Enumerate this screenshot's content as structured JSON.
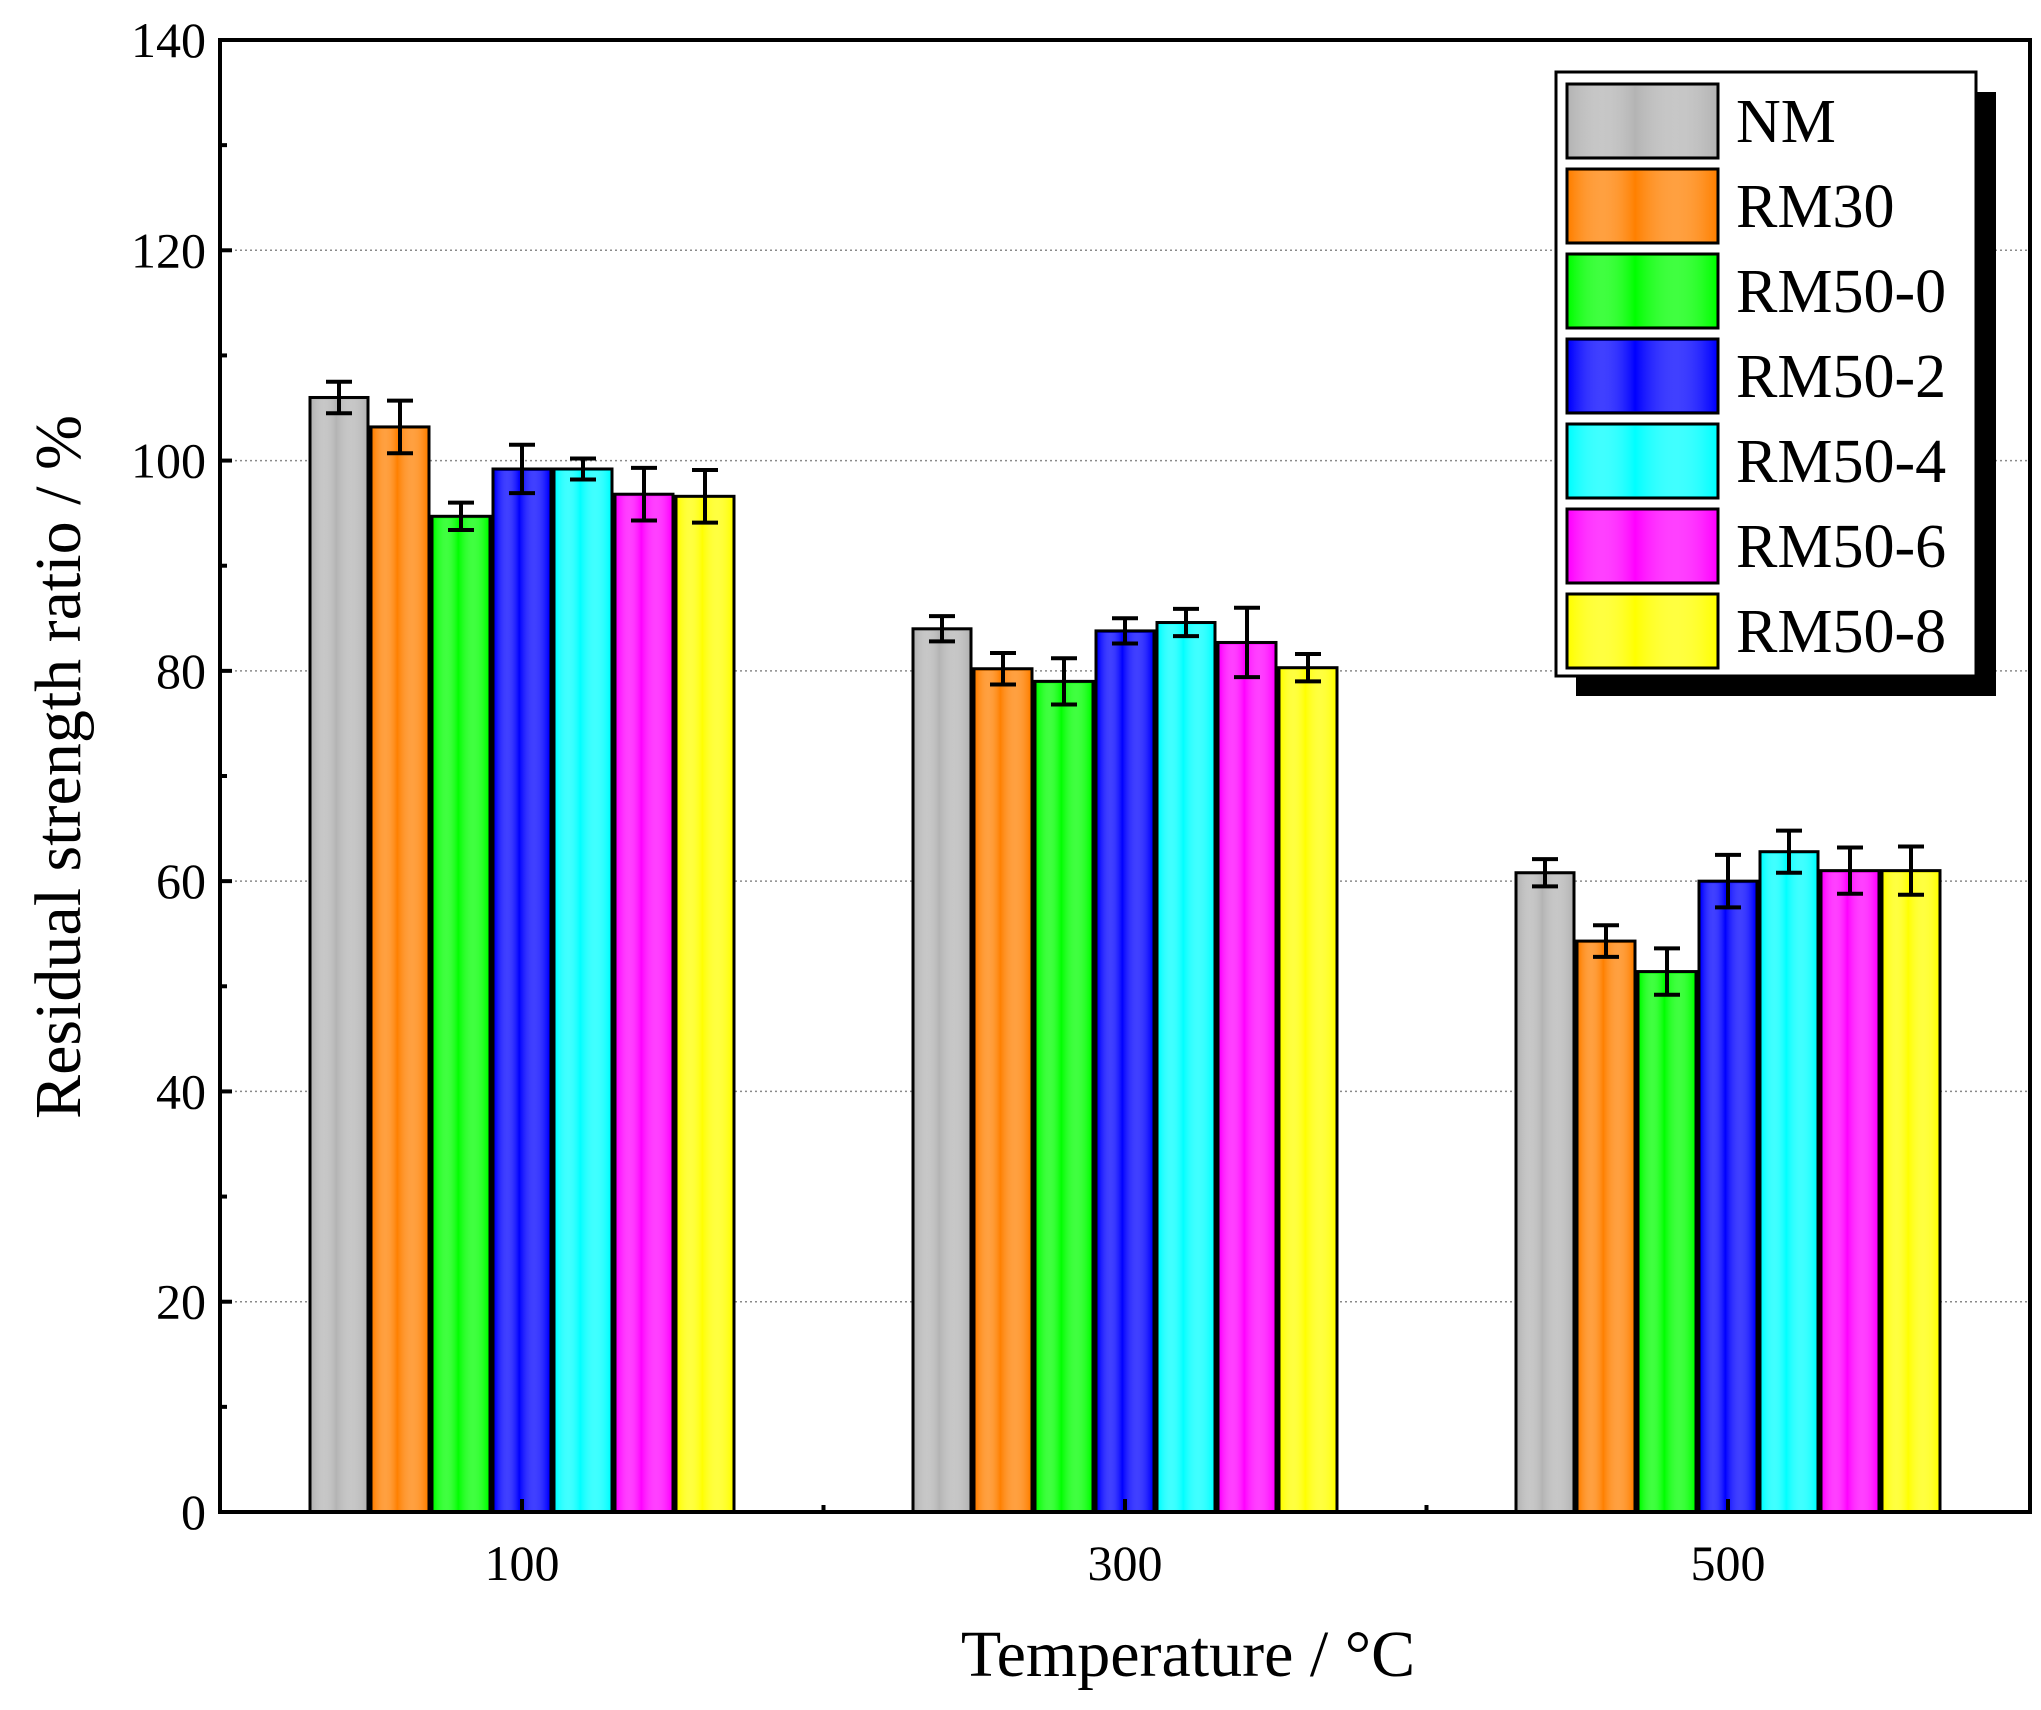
{
  "chart_data": {
    "type": "bar",
    "xlabel": "Temperature / °C",
    "ylabel": "Residual strength ratio / %",
    "ylim": [
      0,
      140
    ],
    "yticks": [
      "0",
      "20",
      "40",
      "60",
      "80",
      "100",
      "120",
      "140"
    ],
    "categories": [
      "100",
      "300",
      "500"
    ],
    "grid": true,
    "legend_position": "top-right",
    "series": [
      {
        "name": "NM",
        "color": "#b4b4b4",
        "values": [
          106.0,
          84.0,
          60.8
        ],
        "errors": [
          1.5,
          1.2,
          1.3
        ]
      },
      {
        "name": "RM30",
        "color": "#ff8000",
        "values": [
          103.2,
          80.2,
          54.3
        ],
        "errors": [
          2.5,
          1.5,
          1.5
        ]
      },
      {
        "name": "RM50-0",
        "color": "#00ff00",
        "values": [
          94.7,
          79.0,
          51.4
        ],
        "errors": [
          1.3,
          2.2,
          2.2
        ]
      },
      {
        "name": "RM50-2",
        "color": "#0000ff",
        "values": [
          99.2,
          83.8,
          60.0
        ],
        "errors": [
          2.3,
          1.2,
          2.5
        ]
      },
      {
        "name": "RM50-4",
        "color": "#00ffff",
        "values": [
          99.2,
          84.6,
          62.8
        ],
        "errors": [
          1.0,
          1.3,
          2.0
        ]
      },
      {
        "name": "RM50-6",
        "color": "#ff00ff",
        "values": [
          96.8,
          82.7,
          61.0
        ],
        "errors": [
          2.5,
          3.3,
          2.2
        ]
      },
      {
        "name": "RM50-8",
        "color": "#ffff00",
        "values": [
          96.6,
          80.3,
          61.0
        ],
        "errors": [
          2.5,
          1.3,
          2.3
        ]
      }
    ]
  }
}
